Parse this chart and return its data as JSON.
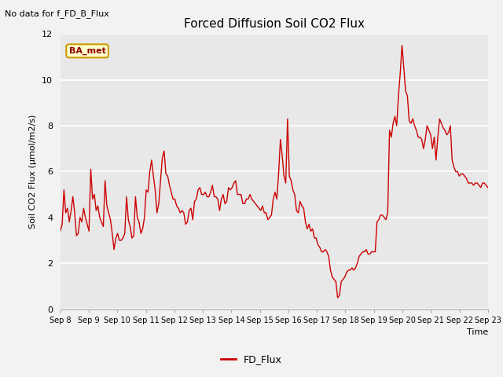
{
  "title": "Forced Diffusion Soil CO2 Flux",
  "ylabel": "Soil CO2 Flux (µmol/m2/s)",
  "xlabel": "Time",
  "top_left_text": "No data for f_FD_B_Flux",
  "annotation_box": "BA_met",
  "ylim": [
    0,
    12
  ],
  "yticks": [
    0,
    2,
    4,
    6,
    8,
    10,
    12
  ],
  "xtick_labels": [
    "Sep 8",
    "Sep 9",
    "Sep 10",
    "Sep 11",
    "Sep 12",
    "Sep 13",
    "Sep 14",
    "Sep 15",
    "Sep 16",
    "Sep 17",
    "Sep 18",
    "Sep 19",
    "Sep 20",
    "Sep 21",
    "Sep 22",
    "Sep 23"
  ],
  "line_color": "#cc0000",
  "legend_label": "FD_Flux",
  "plot_bg_color": "#e8e8e8",
  "fig_bg_color": "#f2f2f2",
  "grid_color": "#ffffff",
  "flux_values": [
    3.4,
    3.7,
    5.2,
    4.2,
    4.4,
    3.8,
    4.3,
    4.9,
    4.2,
    3.2,
    3.3,
    4.0,
    3.8,
    4.4,
    4.0,
    3.7,
    3.4,
    6.1,
    4.8,
    5.0,
    4.3,
    4.5,
    4.0,
    3.8,
    3.6,
    5.6,
    4.5,
    4.2,
    3.9,
    3.3,
    2.6,
    3.1,
    3.3,
    3.0,
    3.0,
    3.1,
    3.3,
    4.9,
    3.9,
    3.6,
    3.1,
    3.2,
    4.9,
    4.0,
    3.8,
    3.3,
    3.5,
    4.0,
    5.2,
    5.1,
    6.0,
    6.5,
    5.8,
    5.2,
    4.2,
    4.6,
    5.6,
    6.6,
    6.9,
    5.9,
    5.8,
    5.4,
    5.1,
    4.8,
    4.8,
    4.5,
    4.4,
    4.2,
    4.3,
    4.2,
    3.7,
    3.8,
    4.3,
    4.4,
    3.9,
    4.7,
    4.8,
    5.2,
    5.3,
    5.0,
    5.0,
    5.1,
    4.9,
    4.9,
    5.1,
    5.4,
    4.9,
    4.9,
    4.8,
    4.3,
    4.8,
    5.0,
    4.6,
    4.7,
    5.3,
    5.2,
    5.3,
    5.5,
    5.6,
    5.0,
    5.0,
    5.0,
    4.6,
    4.6,
    4.8,
    4.8,
    5.0,
    4.8,
    4.7,
    4.6,
    4.5,
    4.4,
    4.3,
    4.5,
    4.2,
    4.2,
    3.9,
    4.0,
    4.1,
    4.8,
    5.1,
    4.8,
    5.9,
    7.4,
    6.7,
    5.8,
    5.5,
    8.3,
    5.8,
    5.6,
    5.2,
    5.0,
    4.3,
    4.2,
    4.7,
    4.5,
    4.4,
    3.8,
    3.5,
    3.7,
    3.4,
    3.5,
    3.1,
    3.1,
    2.8,
    2.7,
    2.5,
    2.5,
    2.6,
    2.5,
    2.3,
    1.7,
    1.4,
    1.3,
    1.2,
    0.5,
    0.6,
    1.2,
    1.3,
    1.4,
    1.6,
    1.7,
    1.7,
    1.8,
    1.7,
    1.8,
    2.0,
    2.3,
    2.4,
    2.5,
    2.5,
    2.6,
    2.4,
    2.4,
    2.5,
    2.5,
    2.5,
    3.8,
    3.9,
    4.1,
    4.1,
    4.0,
    3.9,
    4.2,
    7.8,
    7.5,
    8.1,
    8.4,
    8.0,
    9.3,
    10.3,
    11.5,
    10.5,
    9.5,
    9.3,
    8.2,
    8.1,
    8.3,
    8.0,
    7.8,
    7.5,
    7.5,
    7.4,
    7.0,
    7.4,
    8.0,
    7.8,
    7.6,
    7.0,
    7.5,
    6.5,
    7.5,
    8.3,
    8.1,
    7.9,
    7.8,
    7.6,
    7.7,
    8.0,
    6.5,
    6.2,
    6.0,
    6.0,
    5.8,
    5.9,
    5.9,
    5.8,
    5.7,
    5.5,
    5.5,
    5.5,
    5.4,
    5.5,
    5.5,
    5.4,
    5.3,
    5.5,
    5.5,
    5.4,
    5.3
  ]
}
